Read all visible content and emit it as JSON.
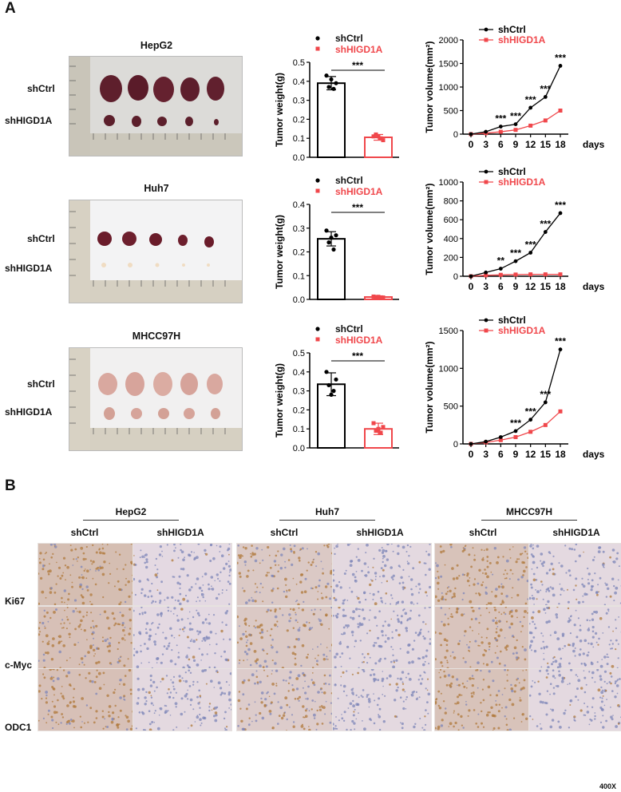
{
  "panel_a": {
    "letter": "A",
    "rows": [
      {
        "cell_line": "HepG2",
        "labels": [
          "shCtrl",
          "shHIGD1A"
        ]
      },
      {
        "cell_line": "Huh7",
        "labels": [
          "shCtrl",
          "shHIGD1A"
        ]
      },
      {
        "cell_line": "MHCC97H",
        "labels": [
          "shCtrl",
          "shHIGD1A"
        ]
      }
    ]
  },
  "chart_data": [
    {
      "type": "bar",
      "ylabel": "Tumor weight(g)",
      "categories": [
        "shCtrl",
        "shHIGD1A"
      ],
      "legend": [
        "shCtrl",
        "shHIGD1A"
      ],
      "values": [
        0.39,
        0.105
      ],
      "errors": [
        0.035,
        0.015
      ],
      "ylim": [
        0,
        0.5
      ],
      "yticks": [
        "0.0",
        "0.1",
        "0.2",
        "0.3",
        "0.4",
        "0.5"
      ],
      "points": [
        [
          0.43,
          0.39,
          0.37,
          0.36,
          0.41
        ],
        [
          0.11,
          0.09,
          0.12,
          0.1,
          0.11
        ]
      ],
      "annotation": "***",
      "colors": [
        "#000000",
        "#f0474b"
      ]
    },
    {
      "type": "line",
      "ylabel": "Tumor volume(mm²)",
      "xlabel": "days",
      "x": [
        0,
        3,
        6,
        9,
        12,
        15,
        18
      ],
      "xticks": [
        "0",
        "3",
        "6",
        "9",
        "12",
        "15",
        "18"
      ],
      "yticks": [
        "0",
        "500",
        "1000",
        "1500",
        "2000"
      ],
      "ylim": [
        0,
        2000
      ],
      "series": [
        {
          "name": "shCtrl",
          "values": [
            0,
            50,
            160,
            210,
            560,
            790,
            1450
          ],
          "color": "#000000"
        },
        {
          "name": "shHIGD1A",
          "values": [
            0,
            20,
            50,
            90,
            180,
            290,
            500
          ],
          "color": "#f0474b"
        }
      ],
      "annotations": [
        "***",
        "***",
        "***",
        "***",
        "***"
      ]
    },
    {
      "type": "bar",
      "ylabel": "Tumor weight(g)",
      "categories": [
        "shCtrl",
        "shHIGD1A"
      ],
      "legend": [
        "shCtrl",
        "shHIGD1A"
      ],
      "values": [
        0.255,
        0.01
      ],
      "errors": [
        0.03,
        0.005
      ],
      "ylim": [
        0,
        0.4
      ],
      "yticks": [
        "0.0",
        "0.1",
        "0.2",
        "0.3",
        "0.4"
      ],
      "points": [
        [
          0.29,
          0.27,
          0.24,
          0.21,
          0.26
        ],
        [
          0.012,
          0.008,
          0.01,
          0.006,
          0.011
        ]
      ],
      "annotation": "***",
      "colors": [
        "#000000",
        "#f0474b"
      ]
    },
    {
      "type": "line",
      "ylabel": "Tumor volume(mm²)",
      "xlabel": "days",
      "x": [
        0,
        3,
        6,
        9,
        12,
        15,
        18
      ],
      "xticks": [
        "0",
        "3",
        "6",
        "9",
        "12",
        "15",
        "18"
      ],
      "yticks": [
        "0",
        "200",
        "400",
        "600",
        "800",
        "1000"
      ],
      "ylim": [
        0,
        1000
      ],
      "series": [
        {
          "name": "shCtrl",
          "values": [
            0,
            40,
            80,
            160,
            250,
            470,
            670
          ],
          "color": "#000000"
        },
        {
          "name": "shHIGD1A",
          "values": [
            0,
            10,
            15,
            18,
            20,
            20,
            20
          ],
          "color": "#f0474b"
        }
      ],
      "annotations": [
        "**",
        "***",
        "***",
        "***",
        "***"
      ]
    },
    {
      "type": "bar",
      "ylabel": "Tumor weight(g)",
      "categories": [
        "shCtrl",
        "shHIGD1A"
      ],
      "legend": [
        "shCtrl",
        "shHIGD1A"
      ],
      "values": [
        0.335,
        0.1
      ],
      "errors": [
        0.06,
        0.03
      ],
      "ylim": [
        0,
        0.5
      ],
      "yticks": [
        "0.0",
        "0.1",
        "0.2",
        "0.3",
        "0.4",
        "0.5"
      ],
      "points": [
        [
          0.4,
          0.36,
          0.33,
          0.3,
          0.28
        ],
        [
          0.13,
          0.11,
          0.09,
          0.08,
          0.1
        ]
      ],
      "annotation": "***",
      "colors": [
        "#000000",
        "#f0474b"
      ]
    },
    {
      "type": "line",
      "ylabel": "Tumor volume(mm²)",
      "xlabel": "days",
      "x": [
        0,
        3,
        6,
        9,
        12,
        15,
        18
      ],
      "xticks": [
        "0",
        "3",
        "6",
        "9",
        "12",
        "15",
        "18"
      ],
      "yticks": [
        "0",
        "500",
        "1000",
        "1500"
      ],
      "ylim": [
        0,
        1500
      ],
      "series": [
        {
          "name": "shCtrl",
          "values": [
            0,
            30,
            90,
            170,
            320,
            550,
            1250
          ],
          "color": "#000000"
        },
        {
          "name": "shHIGD1A",
          "values": [
            0,
            20,
            50,
            90,
            160,
            250,
            430
          ],
          "color": "#f0474b"
        }
      ],
      "annotations": [
        "***",
        "***",
        "***",
        "***"
      ]
    }
  ],
  "panel_b": {
    "letter": "B",
    "groups": [
      "HepG2",
      "Huh7",
      "MHCC97H"
    ],
    "columns": [
      "shCtrl",
      "shHIGD1A",
      "shCtrl",
      "shHIGD1A",
      "shCtrl",
      "shHIGD1A"
    ],
    "markers": [
      "Ki67",
      "c-Myc",
      "ODC1"
    ],
    "magnification": "400X",
    "stain_colors": {
      "brown": "#b07a3c",
      "tissue": "#e6dce6",
      "nuclei": "#7e86b8"
    }
  }
}
